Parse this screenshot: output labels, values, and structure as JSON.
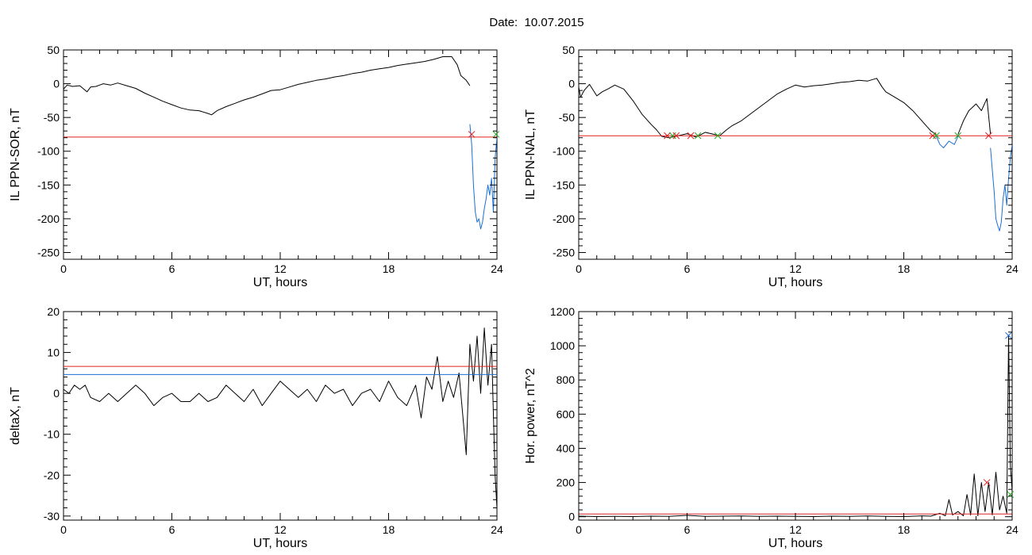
{
  "page": {
    "title": "Date:  10.07.2015",
    "background": "#ffffff"
  },
  "chart_data": [
    {
      "type": "line",
      "xlabel": "UT, hours",
      "ylabel": "IL PPN-SOR, nT",
      "xlim": [
        0,
        24
      ],
      "ylim": [
        -260,
        50
      ],
      "xticks": [
        0,
        6,
        12,
        18,
        24
      ],
      "yticks": [
        50,
        0,
        -50,
        -100,
        -150,
        -200,
        -250
      ],
      "series": [
        {
          "color": "#000000",
          "x": [
            0,
            0.2,
            0.5,
            0.9,
            1.3,
            1.5,
            1.8,
            2.2,
            2.6,
            3.0,
            3.5,
            4.0,
            4.5,
            5.0,
            5.5,
            6.0,
            6.5,
            7.0,
            7.5,
            8.0,
            8.2,
            8.5,
            9.0,
            9.5,
            10.0,
            10.5,
            11.0,
            11.5,
            12.0,
            12.5,
            13.0,
            13.5,
            14.0,
            14.5,
            15.0,
            15.5,
            16.0,
            16.5,
            17.0,
            17.5,
            18.0,
            18.5,
            19.0,
            19.5,
            20.0,
            20.5,
            21.0,
            21.5,
            21.8,
            22.0,
            22.3,
            22.5
          ],
          "y": [
            -8,
            -2,
            -4,
            -3,
            -12,
            -5,
            -4,
            0,
            -2,
            1,
            -3,
            -7,
            -14,
            -20,
            -26,
            -31,
            -36,
            -39,
            -40,
            -44,
            -46,
            -40,
            -34,
            -29,
            -24,
            -20,
            -15,
            -10,
            -9,
            -5,
            -1,
            2,
            5,
            7,
            10,
            12,
            15,
            17,
            20,
            22,
            24,
            27,
            29,
            31,
            33,
            36,
            40,
            40,
            28,
            12,
            5,
            -3
          ]
        },
        {
          "color": "#1a6fd6",
          "x": [
            22.5,
            22.6,
            22.7,
            22.8,
            22.9,
            23.0,
            23.1,
            23.2,
            23.3,
            23.4,
            23.5,
            23.6,
            23.7,
            23.8,
            23.9,
            24.0
          ],
          "y": [
            -60,
            -90,
            -150,
            -190,
            -205,
            -200,
            -215,
            -205,
            -185,
            -170,
            -150,
            -165,
            -140,
            -190,
            -110,
            -80
          ]
        },
        {
          "color": "#e02020",
          "x": [
            0,
            24
          ],
          "y": [
            -79,
            -79
          ]
        }
      ],
      "markers": [
        {
          "x": 22.6,
          "y": -75,
          "color": "#e02020"
        },
        {
          "x": 23.95,
          "y": -75,
          "color": "#22aa22"
        }
      ]
    },
    {
      "type": "line",
      "xlabel": "UT, hours",
      "ylabel": "IL PPN-NAL, nT",
      "xlim": [
        0,
        24
      ],
      "ylim": [
        -260,
        50
      ],
      "xticks": [
        0,
        6,
        12,
        18,
        24
      ],
      "yticks": [
        50,
        0,
        -50,
        -100,
        -150,
        -200,
        -250
      ],
      "series": [
        {
          "color": "#000000",
          "x": [
            0,
            0.1,
            0.3,
            0.6,
            1.0,
            1.3,
            1.6,
            2.0,
            2.5,
            3.0,
            3.5,
            4.0,
            4.3,
            4.6,
            5.0,
            5.5,
            6.0,
            6.5,
            7.0,
            7.5,
            7.8,
            8.2,
            8.5,
            9.0,
            9.5,
            10.0,
            10.5,
            11.0,
            11.5,
            12.0,
            12.5,
            13.0,
            13.5,
            14.0,
            14.5,
            15.0,
            15.5,
            16.0,
            16.5,
            16.8,
            17.0,
            17.5,
            18.0,
            18.5,
            19.0,
            19.5,
            19.8
          ],
          "y": [
            -5,
            -20,
            -10,
            -1,
            -18,
            -12,
            -8,
            -2,
            -8,
            -25,
            -45,
            -60,
            -68,
            -78,
            -80,
            -77,
            -74,
            -79,
            -72,
            -75,
            -77,
            -68,
            -62,
            -55,
            -45,
            -35,
            -25,
            -15,
            -8,
            -2,
            -5,
            -3,
            -2,
            0,
            2,
            3,
            5,
            4,
            8,
            -5,
            -12,
            -20,
            -28,
            -40,
            -55,
            -70,
            -75
          ]
        },
        {
          "color": "#1a6fd6",
          "x": [
            19.8,
            20.0,
            20.2,
            20.5,
            20.8,
            21.0
          ],
          "y": [
            -78,
            -90,
            -95,
            -85,
            -90,
            -78
          ]
        },
        {
          "color": "#000000",
          "x": [
            21.0,
            21.3,
            21.6,
            22.0,
            22.3,
            22.6,
            22.8
          ],
          "y": [
            -75,
            -55,
            -40,
            -30,
            -40,
            -22,
            -75
          ]
        },
        {
          "color": "#1a6fd6",
          "x": [
            22.8,
            23.0,
            23.1,
            23.2,
            23.3,
            23.4,
            23.5,
            23.6,
            23.7,
            23.8,
            23.9,
            24.0
          ],
          "y": [
            -95,
            -160,
            -200,
            -210,
            -218,
            -205,
            -170,
            -150,
            -180,
            -140,
            -110,
            -90
          ]
        },
        {
          "color": "#e02020",
          "x": [
            0,
            24
          ],
          "y": [
            -77,
            -77
          ]
        }
      ],
      "markers": [
        {
          "x": 4.9,
          "y": -77,
          "color": "#e02020"
        },
        {
          "x": 5.2,
          "y": -77,
          "color": "#22aa22"
        },
        {
          "x": 5.4,
          "y": -77,
          "color": "#e02020"
        },
        {
          "x": 6.2,
          "y": -77,
          "color": "#e02020"
        },
        {
          "x": 6.6,
          "y": -77,
          "color": "#22aa22"
        },
        {
          "x": 7.7,
          "y": -77,
          "color": "#22aa22"
        },
        {
          "x": 19.6,
          "y": -77,
          "color": "#e02020"
        },
        {
          "x": 19.8,
          "y": -77,
          "color": "#22aa22"
        },
        {
          "x": 21.0,
          "y": -77,
          "color": "#22aa22"
        },
        {
          "x": 22.7,
          "y": -77,
          "color": "#e02020"
        }
      ]
    },
    {
      "type": "line",
      "xlabel": "UT, hours",
      "ylabel": "deltaX, nT",
      "xlim": [
        0,
        24
      ],
      "ylim": [
        -31,
        20
      ],
      "xticks": [
        0,
        6,
        12,
        18,
        24
      ],
      "yticks": [
        20,
        10,
        0,
        -10,
        -20,
        -30
      ],
      "series": [
        {
          "color": "#000000",
          "x": [
            0,
            0.3,
            0.6,
            0.9,
            1.2,
            1.5,
            2.0,
            2.5,
            3.0,
            3.5,
            4.0,
            4.5,
            5.0,
            5.5,
            6.0,
            6.5,
            7.0,
            7.5,
            8.0,
            8.5,
            9.0,
            9.5,
            10.0,
            10.5,
            11.0,
            11.5,
            12.0,
            12.5,
            13.0,
            13.5,
            14.0,
            14.5,
            15.0,
            15.5,
            16.0,
            16.5,
            17.0,
            17.5,
            18.0,
            18.5,
            19.0,
            19.5,
            19.8,
            20.1,
            20.4,
            20.7,
            21.0,
            21.3,
            21.6,
            21.9,
            22.1,
            22.3,
            22.5,
            22.7,
            22.9,
            23.1,
            23.3,
            23.5,
            23.7,
            23.8,
            23.9,
            24.0
          ],
          "y": [
            1,
            0,
            2,
            1,
            2,
            -1,
            -2,
            0,
            -2,
            0,
            2,
            0,
            -3,
            -1,
            0,
            -2,
            -2,
            0,
            -2,
            -1,
            2,
            0,
            -2,
            1,
            -3,
            0,
            3,
            1,
            -1,
            1,
            -2,
            2,
            0,
            1,
            -3,
            0,
            1,
            -2,
            3,
            -1,
            -3,
            2,
            -6,
            4,
            1,
            9,
            -2,
            3,
            -1,
            5,
            -5,
            -15,
            12,
            3,
            14,
            0,
            16,
            2,
            12,
            -5,
            -20,
            -28
          ]
        },
        {
          "color": "#e02020",
          "x": [
            0,
            24
          ],
          "y": [
            6.6,
            6.6
          ]
        },
        {
          "color": "#1a6fd6",
          "x": [
            0,
            24
          ],
          "y": [
            4.6,
            4.6
          ]
        }
      ],
      "markers": []
    },
    {
      "type": "line",
      "xlabel": "UT, hours",
      "ylabel": "Hor. power, nT^2",
      "xlim": [
        0,
        24
      ],
      "ylim": [
        -20,
        1200
      ],
      "xticks": [
        0,
        6,
        12,
        18,
        24
      ],
      "yticks": [
        1200,
        1000,
        800,
        600,
        400,
        200,
        0
      ],
      "series": [
        {
          "color": "#000000",
          "x": [
            0,
            1.0,
            2.0,
            3.0,
            4.0,
            5.0,
            6.0,
            7.0,
            8.0,
            9.0,
            10.0,
            11.0,
            12.0,
            13.0,
            14.0,
            15.0,
            16.0,
            17.0,
            18.0,
            19.0,
            19.5,
            20.0,
            20.3,
            20.5,
            20.7,
            21.0,
            21.3,
            21.5,
            21.7,
            21.9,
            22.1,
            22.3,
            22.5,
            22.7,
            22.9,
            23.1,
            23.3,
            23.5,
            23.7,
            23.8,
            23.9,
            24.0
          ],
          "y": [
            3,
            1,
            2,
            1,
            3,
            2,
            8,
            2,
            3,
            4,
            2,
            3,
            2,
            1,
            3,
            2,
            4,
            2,
            1,
            5,
            3,
            20,
            5,
            100,
            10,
            30,
            5,
            130,
            10,
            250,
            5,
            200,
            30,
            200,
            10,
            260,
            40,
            120,
            20,
            1060,
            300,
            150
          ]
        },
        {
          "color": "#e02020",
          "x": [
            0,
            24
          ],
          "y": [
            16,
            16
          ]
        }
      ],
      "markers": [
        {
          "x": 22.6,
          "y": 200,
          "color": "#e02020"
        },
        {
          "x": 23.8,
          "y": 1060,
          "color": "#1a6fd6"
        },
        {
          "x": 23.9,
          "y": 130,
          "color": "#22aa22"
        }
      ]
    }
  ]
}
